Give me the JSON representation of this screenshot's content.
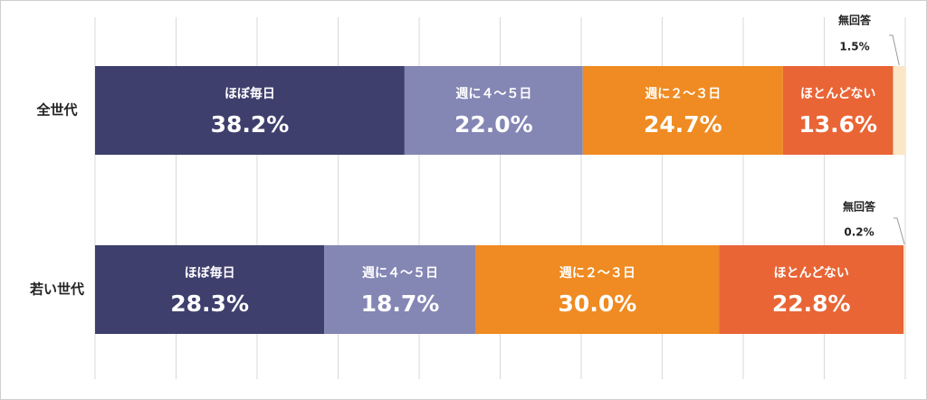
{
  "chart_data": {
    "type": "bar",
    "orientation": "horizontal",
    "stacked": true,
    "normalized_percent": true,
    "grid": true,
    "xlim": [
      0,
      100
    ],
    "categories": [
      "全世代",
      "若い世代"
    ],
    "series": [
      {
        "name": "ほぼ毎日",
        "values": [
          38.2,
          28.3
        ],
        "labels": [
          "38.2%",
          "28.3%"
        ],
        "color": "#3f3f6e"
      },
      {
        "name": "週に４～５日",
        "values": [
          22.0,
          18.7
        ],
        "labels": [
          "22.0%",
          "18.7%"
        ],
        "color": "#8486b4"
      },
      {
        "name": "週に２～３日",
        "values": [
          24.7,
          30.0
        ],
        "labels": [
          "24.7%",
          "30.0%"
        ],
        "color": "#ef8b22"
      },
      {
        "name": "ほとんどない",
        "values": [
          13.6,
          22.8
        ],
        "labels": [
          "13.6%",
          "22.8%"
        ],
        "color": "#e96536"
      },
      {
        "name": "無回答",
        "values": [
          1.5,
          0.2
        ],
        "labels": [
          "1.5%",
          "0.2%"
        ],
        "color": "#fbe6c8",
        "external_label": true
      }
    ]
  }
}
